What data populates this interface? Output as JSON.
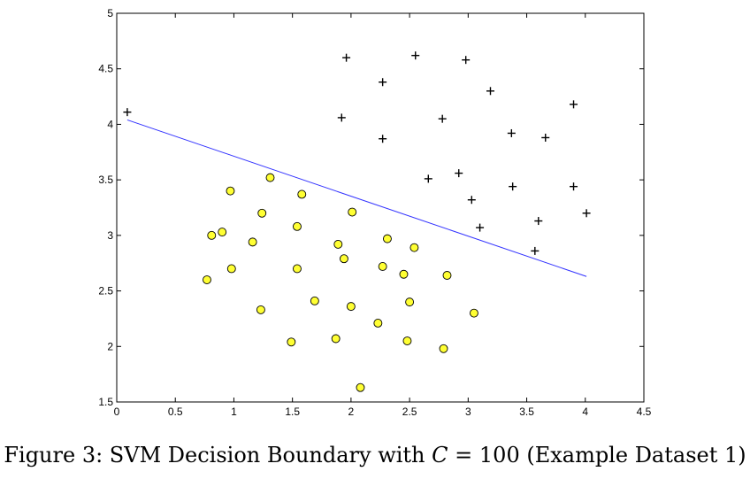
{
  "chart_data": {
    "type": "scatter",
    "xlim": [
      0,
      4.5
    ],
    "ylim": [
      1.5,
      5
    ],
    "x_ticks": [
      "0",
      "0.5",
      "1",
      "1.5",
      "2",
      "2.5",
      "3",
      "3.5",
      "4",
      "4.5"
    ],
    "y_ticks": [
      "1.5",
      "2",
      "2.5",
      "3",
      "3.5",
      "4",
      "4.5",
      "5"
    ],
    "grid": false,
    "series": [
      {
        "marker": "plus",
        "color": "#000000",
        "points": [
          [
            0.09,
            4.11
          ],
          [
            1.96,
            4.6
          ],
          [
            2.55,
            4.62
          ],
          [
            2.98,
            4.58
          ],
          [
            2.27,
            4.38
          ],
          [
            3.19,
            4.3
          ],
          [
            1.92,
            4.06
          ],
          [
            2.78,
            4.05
          ],
          [
            3.9,
            4.18
          ],
          [
            2.27,
            3.87
          ],
          [
            3.37,
            3.92
          ],
          [
            3.66,
            3.88
          ],
          [
            2.66,
            3.51
          ],
          [
            2.92,
            3.56
          ],
          [
            3.38,
            3.44
          ],
          [
            3.9,
            3.44
          ],
          [
            3.03,
            3.32
          ],
          [
            3.6,
            3.13
          ],
          [
            4.01,
            3.2
          ],
          [
            3.1,
            3.07
          ],
          [
            3.57,
            2.86
          ]
        ]
      },
      {
        "marker": "circle",
        "color": "#ffff33",
        "points": [
          [
            1.31,
            3.52
          ],
          [
            0.97,
            3.4
          ],
          [
            1.58,
            3.37
          ],
          [
            1.24,
            3.2
          ],
          [
            2.01,
            3.21
          ],
          [
            0.81,
            3.0
          ],
          [
            0.9,
            3.03
          ],
          [
            1.54,
            3.08
          ],
          [
            1.16,
            2.94
          ],
          [
            1.89,
            2.92
          ],
          [
            2.31,
            2.97
          ],
          [
            2.54,
            2.89
          ],
          [
            1.94,
            2.79
          ],
          [
            0.98,
            2.7
          ],
          [
            1.54,
            2.7
          ],
          [
            2.27,
            2.72
          ],
          [
            2.45,
            2.65
          ],
          [
            2.82,
            2.64
          ],
          [
            0.77,
            2.6
          ],
          [
            1.69,
            2.41
          ],
          [
            2.0,
            2.36
          ],
          [
            2.5,
            2.4
          ],
          [
            1.23,
            2.33
          ],
          [
            3.05,
            2.3
          ],
          [
            2.23,
            2.21
          ],
          [
            1.49,
            2.04
          ],
          [
            1.87,
            2.07
          ],
          [
            2.48,
            2.05
          ],
          [
            2.79,
            1.98
          ],
          [
            2.08,
            1.63
          ]
        ]
      },
      {
        "type": "line",
        "color": "#3333ff",
        "points": [
          [
            0.09,
            4.04
          ],
          [
            4.01,
            2.63
          ]
        ]
      }
    ]
  },
  "caption": {
    "prefix": "Figure 3: SVM Decision Boundary with ",
    "variable": "C",
    "suffix": " = 100 (Example Dataset 1)"
  }
}
